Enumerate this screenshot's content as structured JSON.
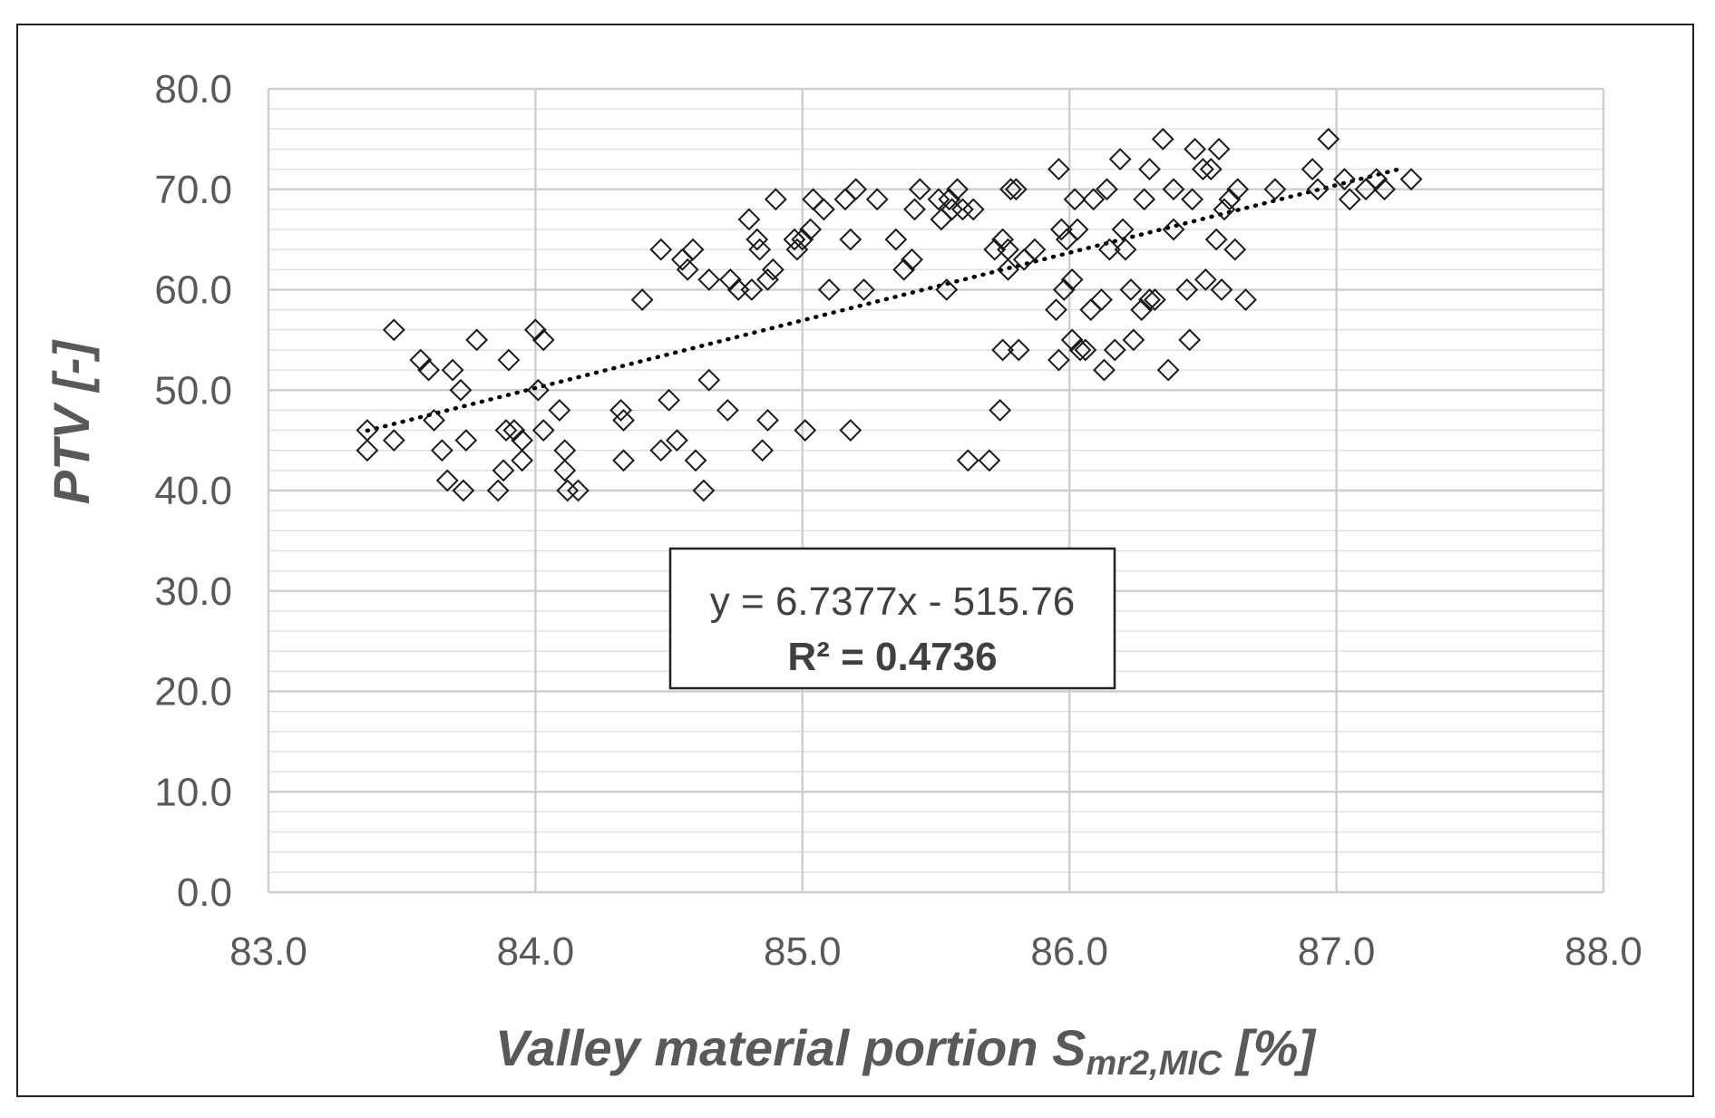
{
  "chart_data": {
    "type": "scatter",
    "xlabel": {
      "main": "Valley material portion S",
      "sub": "mr2,MIC",
      "unit": " [%]"
    },
    "ylabel": "PTV [-]",
    "xlim": [
      83.0,
      88.0
    ],
    "ylim": [
      0.0,
      80.0
    ],
    "xticks": [
      "83.0",
      "84.0",
      "85.0",
      "86.0",
      "87.0",
      "88.0"
    ],
    "yticks": [
      "0.0",
      "10.0",
      "20.0",
      "30.0",
      "40.0",
      "50.0",
      "60.0",
      "70.0",
      "80.0"
    ],
    "grid": {
      "major": true,
      "minor_y": true
    },
    "marker": "diamond-open",
    "trendline": {
      "type": "linear",
      "slope": 6.7377,
      "intercept": -515.76,
      "x_range": [
        83.37,
        87.25
      ],
      "style": "dotted",
      "equation_label": "y = 6.7377x - 515.76",
      "r2_label": "R² = 0.4736"
    },
    "points": [
      [
        83.37,
        46.0
      ],
      [
        83.37,
        44.0
      ],
      [
        83.47,
        56.0
      ],
      [
        83.47,
        45.0
      ],
      [
        83.57,
        53.0
      ],
      [
        83.6,
        52.0
      ],
      [
        83.62,
        47.0
      ],
      [
        83.65,
        44.0
      ],
      [
        83.67,
        41.0
      ],
      [
        83.69,
        52.0
      ],
      [
        83.72,
        50.0
      ],
      [
        83.73,
        40.0
      ],
      [
        83.74,
        45.0
      ],
      [
        83.78,
        55.0
      ],
      [
        83.86,
        40.0
      ],
      [
        83.88,
        42.0
      ],
      [
        83.89,
        46.0
      ],
      [
        83.9,
        53.0
      ],
      [
        83.92,
        46.0
      ],
      [
        83.95,
        45.0
      ],
      [
        83.95,
        43.0
      ],
      [
        84.0,
        56.0
      ],
      [
        84.01,
        50.0
      ],
      [
        84.03,
        55.0
      ],
      [
        84.03,
        46.0
      ],
      [
        84.09,
        48.0
      ],
      [
        84.11,
        44.0
      ],
      [
        84.11,
        42.0
      ],
      [
        84.12,
        40.0
      ],
      [
        84.16,
        40.0
      ],
      [
        84.32,
        48.0
      ],
      [
        84.33,
        47.0
      ],
      [
        84.33,
        43.0
      ],
      [
        84.4,
        59.0
      ],
      [
        84.47,
        64.0
      ],
      [
        84.47,
        44.0
      ],
      [
        84.5,
        49.0
      ],
      [
        84.53,
        45.0
      ],
      [
        84.55,
        63.0
      ],
      [
        84.57,
        62.0
      ],
      [
        84.59,
        64.0
      ],
      [
        84.6,
        43.0
      ],
      [
        84.63,
        40.0
      ],
      [
        84.65,
        51.0
      ],
      [
        84.65,
        61.0
      ],
      [
        84.72,
        48.0
      ],
      [
        84.73,
        61.0
      ],
      [
        84.76,
        60.0
      ],
      [
        84.8,
        67.0
      ],
      [
        84.81,
        60.0
      ],
      [
        84.83,
        65.0
      ],
      [
        84.84,
        64.0
      ],
      [
        84.85,
        44.0
      ],
      [
        84.87,
        61.0
      ],
      [
        84.87,
        47.0
      ],
      [
        84.89,
        62.0
      ],
      [
        84.9,
        69.0
      ],
      [
        84.97,
        65.0
      ],
      [
        84.98,
        64.0
      ],
      [
        85.0,
        65.0
      ],
      [
        85.01,
        46.0
      ],
      [
        85.03,
        66.0
      ],
      [
        85.04,
        69.0
      ],
      [
        85.08,
        68.0
      ],
      [
        85.1,
        60.0
      ],
      [
        85.16,
        69.0
      ],
      [
        85.18,
        65.0
      ],
      [
        85.18,
        46.0
      ],
      [
        85.2,
        70.0
      ],
      [
        85.23,
        60.0
      ],
      [
        85.28,
        69.0
      ],
      [
        85.35,
        65.0
      ],
      [
        85.38,
        62.0
      ],
      [
        85.41,
        63.0
      ],
      [
        85.42,
        68.0
      ],
      [
        85.44,
        70.0
      ],
      [
        85.51,
        69.0
      ],
      [
        85.52,
        67.0
      ],
      [
        85.54,
        60.0
      ],
      [
        85.55,
        69.0
      ],
      [
        85.56,
        68.0
      ],
      [
        85.58,
        70.0
      ],
      [
        85.6,
        68.0
      ],
      [
        85.62,
        43.0
      ],
      [
        85.64,
        68.0
      ],
      [
        85.7,
        43.0
      ],
      [
        85.72,
        64.0
      ],
      [
        85.74,
        48.0
      ],
      [
        85.75,
        54.0
      ],
      [
        85.75,
        65.0
      ],
      [
        85.77,
        64.0
      ],
      [
        85.77,
        62.0
      ],
      [
        85.78,
        70.0
      ],
      [
        85.8,
        70.0
      ],
      [
        85.81,
        54.0
      ],
      [
        85.83,
        63.0
      ],
      [
        85.87,
        64.0
      ],
      [
        85.95,
        58.0
      ],
      [
        85.96,
        72.0
      ],
      [
        85.96,
        53.0
      ],
      [
        85.97,
        66.0
      ],
      [
        85.98,
        60.0
      ],
      [
        85.99,
        65.0
      ],
      [
        86.01,
        61.0
      ],
      [
        86.01,
        55.0
      ],
      [
        86.02,
        69.0
      ],
      [
        86.03,
        66.0
      ],
      [
        86.04,
        54.0
      ],
      [
        86.06,
        54.0
      ],
      [
        86.08,
        58.0
      ],
      [
        86.09,
        69.0
      ],
      [
        86.12,
        59.0
      ],
      [
        86.13,
        52.0
      ],
      [
        86.14,
        70.0
      ],
      [
        86.15,
        64.0
      ],
      [
        86.17,
        54.0
      ],
      [
        86.19,
        73.0
      ],
      [
        86.2,
        66.0
      ],
      [
        86.21,
        64.0
      ],
      [
        86.23,
        60.0
      ],
      [
        86.24,
        55.0
      ],
      [
        86.27,
        58.0
      ],
      [
        86.28,
        69.0
      ],
      [
        86.3,
        72.0
      ],
      [
        86.3,
        59.0
      ],
      [
        86.32,
        59.0
      ],
      [
        86.35,
        75.0
      ],
      [
        86.37,
        52.0
      ],
      [
        86.39,
        66.0
      ],
      [
        86.39,
        70.0
      ],
      [
        86.44,
        60.0
      ],
      [
        86.45,
        55.0
      ],
      [
        86.46,
        69.0
      ],
      [
        86.47,
        74.0
      ],
      [
        86.5,
        72.0
      ],
      [
        86.51,
        61.0
      ],
      [
        86.53,
        72.0
      ],
      [
        86.55,
        65.0
      ],
      [
        86.56,
        74.0
      ],
      [
        86.57,
        60.0
      ],
      [
        86.58,
        68.0
      ],
      [
        86.6,
        69.0
      ],
      [
        86.62,
        64.0
      ],
      [
        86.63,
        70.0
      ],
      [
        86.66,
        59.0
      ],
      [
        86.77,
        70.0
      ],
      [
        86.91,
        72.0
      ],
      [
        86.93,
        70.0
      ],
      [
        86.97,
        75.0
      ],
      [
        87.03,
        71.0
      ],
      [
        87.05,
        69.0
      ],
      [
        87.11,
        70.0
      ],
      [
        87.15,
        71.0
      ],
      [
        87.18,
        70.0
      ],
      [
        87.28,
        71.0
      ]
    ]
  }
}
